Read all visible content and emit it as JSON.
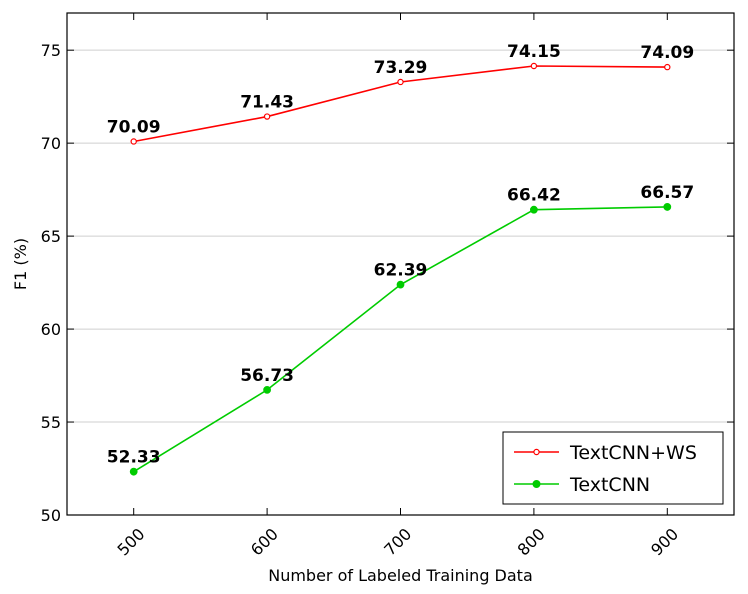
{
  "chart_data": {
    "type": "line",
    "title": "",
    "xlabel": "Number of Labeled Training Data",
    "ylabel": "F1 (%)",
    "x": [
      500,
      600,
      700,
      800,
      900
    ],
    "xlim": [
      450,
      950
    ],
    "ylim": [
      50,
      77
    ],
    "xticks": [
      500,
      600,
      700,
      800,
      900
    ],
    "yticks": [
      50,
      55,
      60,
      65,
      70,
      75
    ],
    "grid": "horizontal",
    "legend_position": "lower-right",
    "series": [
      {
        "name": "TextCNN+WS",
        "color": "#ff0000",
        "marker": "hollow-circle",
        "values": [
          70.09,
          71.43,
          73.29,
          74.15,
          74.09
        ],
        "labels": [
          "70.09",
          "71.43",
          "73.29",
          "74.15",
          "74.09"
        ]
      },
      {
        "name": "TextCNN",
        "color": "#00cc00",
        "marker": "filled-circle",
        "values": [
          52.33,
          56.73,
          62.39,
          66.42,
          66.57
        ],
        "labels": [
          "52.33",
          "56.73",
          "62.39",
          "66.42",
          "66.57"
        ]
      }
    ]
  }
}
